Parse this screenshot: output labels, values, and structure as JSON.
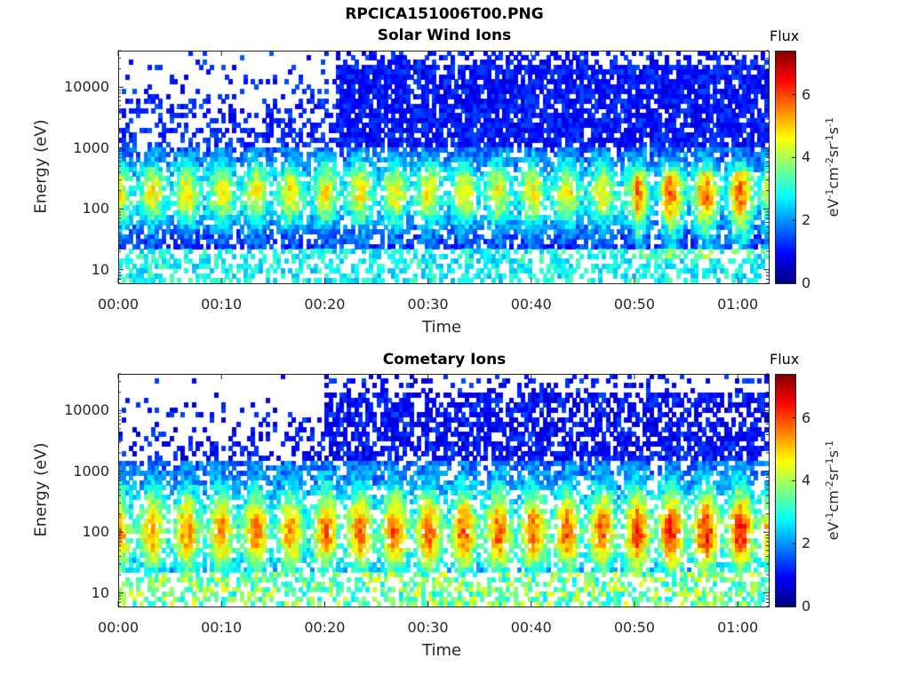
{
  "figure_title": "RPCICA151006T00.PNG",
  "colorbar": {
    "label": "Flux",
    "unit_parts": [
      "eV",
      "-1",
      "cm",
      "-2",
      "sr",
      "-1",
      "s",
      "-1"
    ],
    "ticks": [
      "0",
      "2",
      "4",
      "6"
    ],
    "range": [
      0,
      7.4
    ],
    "colormap": "jet"
  },
  "x_ticks": [
    "00:00",
    "00:10",
    "00:20",
    "00:30",
    "00:40",
    "00:50",
    "01:00"
  ],
  "y_ticks": [
    "10",
    "100",
    "1000",
    "10000"
  ],
  "chart_data": [
    {
      "type": "heatmap",
      "title": "Solar Wind Ions",
      "xlabel": "Time",
      "ylabel": "Energy (eV)",
      "xlim": [
        "00:00",
        "01:03"
      ],
      "ylim": [
        6,
        40000
      ],
      "yscale": "log",
      "x_ticks": [
        "00:00",
        "00:10",
        "00:20",
        "00:30",
        "00:40",
        "00:50",
        "01:00"
      ],
      "y_ticks": [
        10,
        100,
        1000,
        10000
      ],
      "colorbar_label": "Flux",
      "colorbar_range": [
        0,
        7.4
      ]
    },
    {
      "type": "heatmap",
      "title": "Cometary Ions",
      "xlabel": "Time",
      "ylabel": "Energy (eV)",
      "xlim": [
        "00:00",
        "01:03"
      ],
      "ylim": [
        6,
        40000
      ],
      "yscale": "log",
      "x_ticks": [
        "00:00",
        "00:10",
        "00:20",
        "00:30",
        "00:40",
        "00:50",
        "01:00"
      ],
      "y_ticks": [
        10,
        100,
        1000,
        10000
      ],
      "colorbar_label": "Flux",
      "colorbar_range": [
        0,
        7.4
      ]
    }
  ]
}
